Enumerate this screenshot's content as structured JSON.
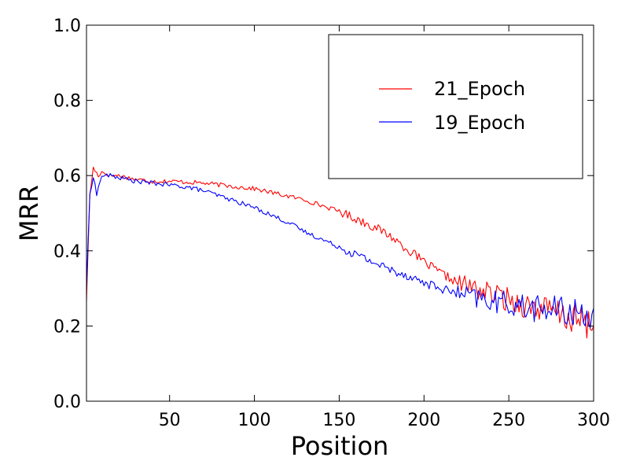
{
  "chart_data": {
    "type": "line",
    "xlabel": "Position",
    "ylabel": "MRR",
    "xlim": [
      1,
      300
    ],
    "ylim": [
      0.0,
      1.0
    ],
    "xticks": [
      50,
      100,
      150,
      200,
      250,
      300
    ],
    "xtick_labels": [
      "50",
      "100",
      "150",
      "200",
      "250",
      "300"
    ],
    "yticks": [
      0.0,
      0.2,
      0.4,
      0.6,
      0.8,
      1.0
    ],
    "ytick_labels": [
      "0.0",
      "0.2",
      "0.4",
      "0.6",
      "0.8",
      "1.0"
    ],
    "grid": false,
    "legend_position": "top-right",
    "series": [
      {
        "name": "21_Epoch",
        "color": "#ff0000",
        "points": [
          [
            1,
            0.27
          ],
          [
            3,
            0.55
          ],
          [
            5,
            0.62
          ],
          [
            8,
            0.6
          ],
          [
            10,
            0.61
          ],
          [
            15,
            0.6
          ],
          [
            20,
            0.6
          ],
          [
            25,
            0.595
          ],
          [
            30,
            0.59
          ],
          [
            40,
            0.585
          ],
          [
            50,
            0.585
          ],
          [
            60,
            0.583
          ],
          [
            70,
            0.58
          ],
          [
            80,
            0.575
          ],
          [
            90,
            0.57
          ],
          [
            100,
            0.565
          ],
          [
            110,
            0.555
          ],
          [
            120,
            0.545
          ],
          [
            130,
            0.535
          ],
          [
            140,
            0.52
          ],
          [
            150,
            0.505
          ],
          [
            160,
            0.485
          ],
          [
            170,
            0.465
          ],
          [
            180,
            0.44
          ],
          [
            190,
            0.405
          ],
          [
            200,
            0.37
          ],
          [
            210,
            0.34
          ],
          [
            220,
            0.315
          ],
          [
            230,
            0.3
          ],
          [
            240,
            0.285
          ],
          [
            250,
            0.27
          ],
          [
            260,
            0.255
          ],
          [
            270,
            0.245
          ],
          [
            280,
            0.23
          ],
          [
            290,
            0.215
          ],
          [
            300,
            0.2
          ]
        ]
      },
      {
        "name": "19_Epoch",
        "color": "#0000ff",
        "points": [
          [
            1,
            0.3
          ],
          [
            3,
            0.55
          ],
          [
            5,
            0.6
          ],
          [
            7,
            0.55
          ],
          [
            10,
            0.6
          ],
          [
            15,
            0.6
          ],
          [
            20,
            0.595
          ],
          [
            25,
            0.59
          ],
          [
            30,
            0.585
          ],
          [
            40,
            0.58
          ],
          [
            50,
            0.575
          ],
          [
            60,
            0.57
          ],
          [
            70,
            0.56
          ],
          [
            80,
            0.545
          ],
          [
            90,
            0.53
          ],
          [
            100,
            0.515
          ],
          [
            110,
            0.495
          ],
          [
            120,
            0.475
          ],
          [
            130,
            0.45
          ],
          [
            140,
            0.43
          ],
          [
            150,
            0.41
          ],
          [
            160,
            0.39
          ],
          [
            170,
            0.37
          ],
          [
            180,
            0.35
          ],
          [
            190,
            0.335
          ],
          [
            200,
            0.315
          ],
          [
            210,
            0.3
          ],
          [
            220,
            0.285
          ],
          [
            230,
            0.275
          ],
          [
            240,
            0.265
          ],
          [
            250,
            0.26
          ],
          [
            260,
            0.25
          ],
          [
            270,
            0.245
          ],
          [
            280,
            0.24
          ],
          [
            290,
            0.235
          ],
          [
            300,
            0.235
          ]
        ]
      }
    ]
  }
}
